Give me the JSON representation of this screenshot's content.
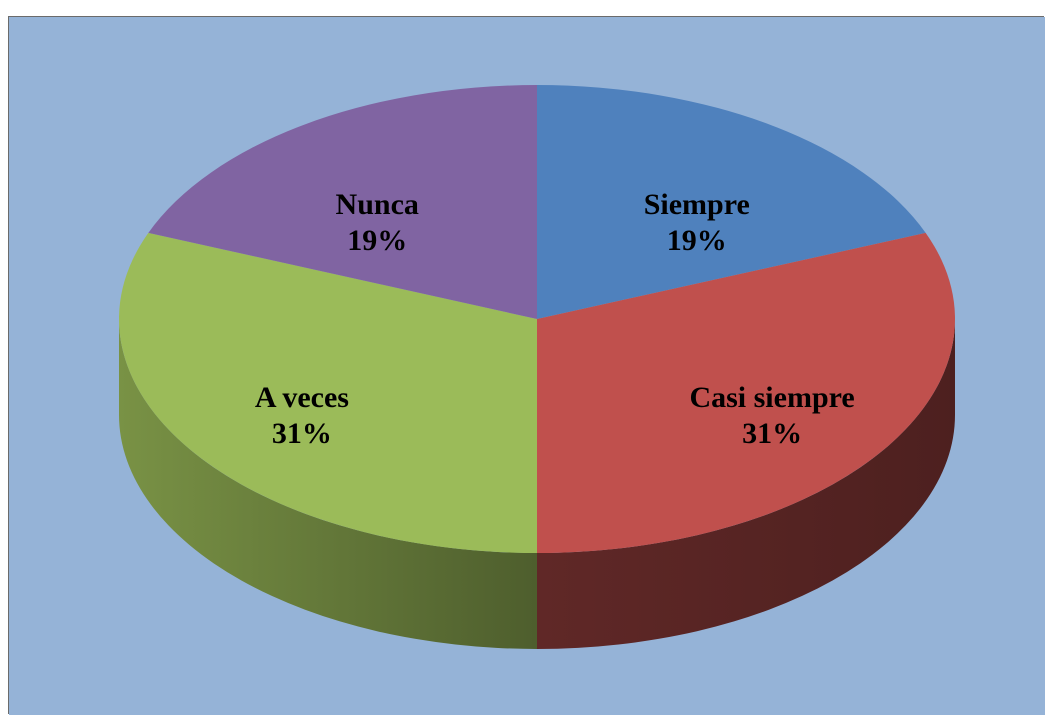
{
  "chart_data": {
    "type": "pie",
    "style": "3d",
    "categories": [
      "Siempre",
      "Casi siempre",
      "A veces",
      "Nunca"
    ],
    "values": [
      19,
      31,
      31,
      19
    ],
    "value_labels": [
      "19%",
      "31%",
      "31%",
      "19%"
    ],
    "colors": [
      "#4f81bd",
      "#c0504d",
      "#9bbb59",
      "#8064a2"
    ],
    "background": "#95b3d7",
    "legend": "none"
  }
}
